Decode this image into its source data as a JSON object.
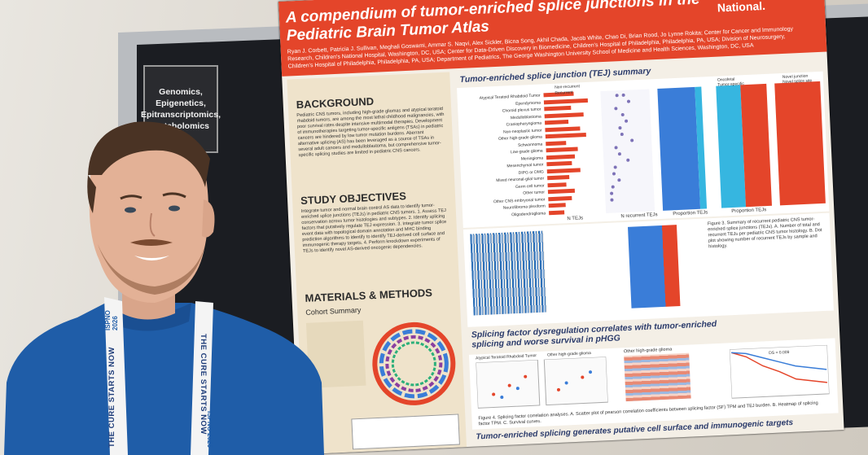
{
  "topic_card": {
    "label": "Genomics, Epigenetics, Epitranscriptomics, Metabolomics"
  },
  "poster": {
    "title": "A compendium of tumor-enriched splice junctions in the Pediatric Brain Tumor Atlas",
    "logo": "Children's National.",
    "authors": "Ryan J. Corbett, Patricia J. Sullivan, Meghali Goswami, Ammar S. Naqvi, Alex Sickler, Bicna Song, Akhil Chada, Jacob White, Chao Di, Brian Rood, Jo Lynne Rokita",
    "affiliations": "Center for Cancer and Immunology Research, Children's National Hospital, Washington, DC, USA; Center for Data-Driven Discovery in Biomedicine, Children's Hospital of Philadelphia, Philadelphia, PA, USA; Division of Neurosurgery, Children's Hospital of Philadelphia, Philadelphia, PA, USA; Department of Pediatrics, The George Washington University School of Medicine and Health Sciences, Washington, DC, USA",
    "background_heading": "BACKGROUND",
    "background_text": "Pediatric CNS tumors, including high-grade gliomas and atypical teratoid rhabdoid tumors, are among the most lethal childhood malignancies, with poor survival rates despite intensive multimodal therapies. Development of immunotherapies targeting tumor-specific antigens (TSAs) in pediatric cancers are hindered by low tumor mutation burdens. Aberrant alternative splicing (AS) has been leveraged as a source of TSAs in several adult cancers and medulloblastoma, but comprehensive tumor-specific splicing studies are limited in pediatric CNS cancers.",
    "objectives_heading": "STUDY OBJECTIVES",
    "objectives_text": "Integrate tumor and normal brain control AS data to identify tumor-enriched splice junctions (TEJs) in pediatric CNS tumors. 1. Assess TEJ conservation across tumor histologies and subtypes. 2. Identify splicing factors that putatively regulate TEJ expression. 3. Integrate tumor splice event data with topological domain annotation and MHC binding prediction algorithms to identify to identify TEJ-derived cell surface and immunogenic therapy targets. 4. Perform knockdown experiments of TEJs to identify novel AS-derived oncogenic dependencies.",
    "methods_heading": "MATERIALS & METHODS",
    "cohort_heading": "Cohort Summary",
    "summary_heading": "Tumor-enriched splice junction (TEJ) summary",
    "splicing_heading": "Splicing factor dysregulation correlates with tumor-enriched splicing and worse survival in pHGG",
    "bottom_heading": "Tumor-enriched splicing generates putative cell surface and immunogenic targets",
    "fig3_caption": "Figure 3. Summary of recurrent pediatric CNS tumor-enriched splice junctions (TEJs). A. Number of total and recurrent TEJs per pediatric CNS tumor histology. B. Dot plot showing number of recurrent TEJs by sample and histology.",
    "fig4_caption": "Figure 4. Splicing factor correlation analyses. A. Scatter plot of pearson correlation coefficients between splicing factor (SF) TPM and TEJ burden. B. Heatmap of splicing factor TPM. C. Survival curves.",
    "legend_nonrecurrent": "Non-recurrent",
    "legend_recurrent": "Recurrent",
    "legend_oncofetal": "Oncofetal",
    "legend_tumor_specific": "Tumor-specific",
    "legend_novel_junction": "Novel junction",
    "legend_novel_site": "Novel splice site",
    "axis_n_tejs": "N TEJs",
    "axis_n_recurrent": "N recurrent TEJs",
    "axis_proportion": "Proportion TEJs",
    "histologies": [
      "Atypical Teratoid Rhabdoid Tumor",
      "Ependymoma",
      "Choroid plexus tumor",
      "Medulloblastoma",
      "Craniopharyngioma",
      "Non-neoplastic tumor",
      "Other high-grade glioma",
      "Schwannoma",
      "Low-grade glioma",
      "Meningioma",
      "Mesenchymal tumor",
      "DIPG or DMG",
      "Mixed neuronal-glial tumor",
      "Germ cell tumor",
      "Other tumor",
      "Other CNS embryonal tumor",
      "Neurofibroma plexiform",
      "Oligodendroglioma"
    ],
    "tej_values": [
      9000,
      13000,
      8000,
      11500,
      7000,
      10500,
      12000,
      6000,
      9500,
      8500,
      7500,
      10000,
      6500,
      5500,
      8000,
      7000,
      5000,
      4500
    ],
    "ds_label": "DS = 0.009",
    "other_hgg_label": "Other high-grade glioma",
    "atrt_label": "Atypical Teratoid Rhabdoid Tumor"
  },
  "lanyard": {
    "text": "THE CURE STARTS NOW",
    "badge": "ISPNO 2026"
  }
}
